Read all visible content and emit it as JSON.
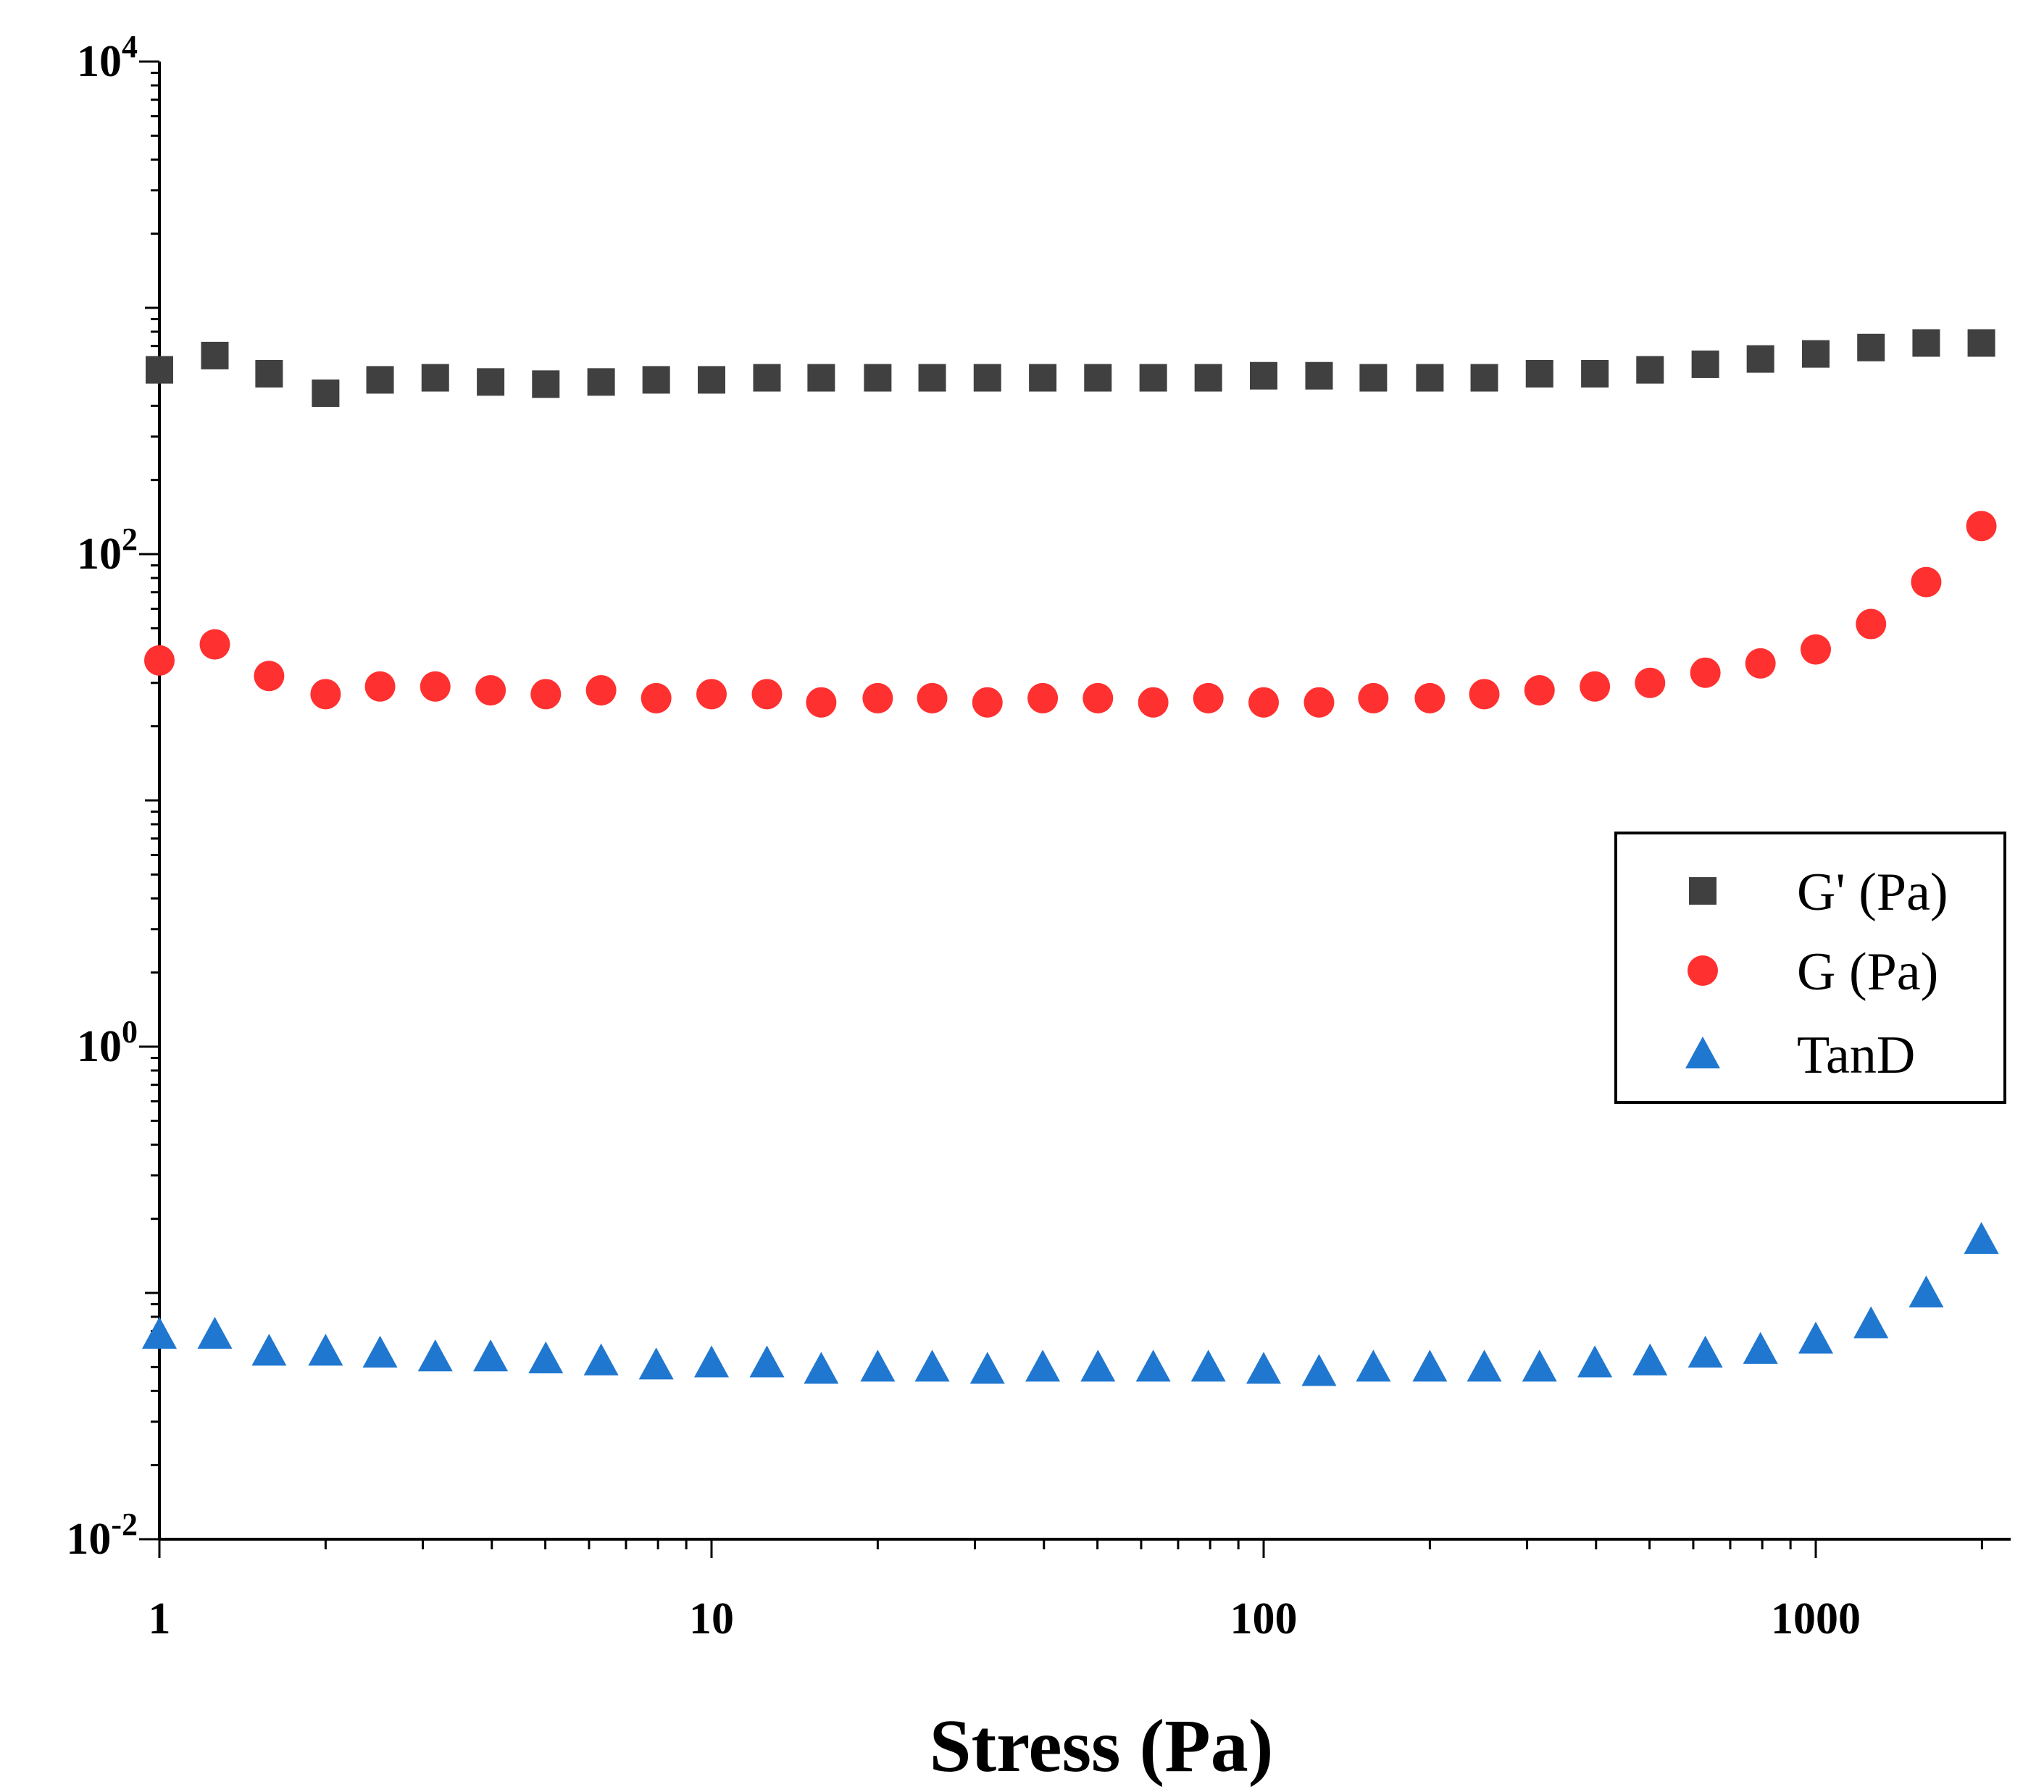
{
  "chart_data": {
    "type": "scatter",
    "title": "",
    "xlabel": "Stress (Pa)",
    "ylabel": "",
    "xscale": "log",
    "yscale": "log",
    "xlim": [
      1,
      2400
    ],
    "ylim": [
      0.01,
      10000
    ],
    "x_ticks": [
      {
        "value": 1,
        "label": "1"
      },
      {
        "value": 10,
        "label": "10"
      },
      {
        "value": 100,
        "label": "100"
      },
      {
        "value": 1000,
        "label": "1000"
      }
    ],
    "y_ticks": [
      {
        "value": 0.01,
        "base": "10",
        "exp": "-2"
      },
      {
        "value": 1,
        "base": "10",
        "exp": "0"
      },
      {
        "value": 100,
        "base": "10",
        "exp": "2"
      },
      {
        "value": 10000,
        "base": "10",
        "exp": "4"
      }
    ],
    "x": [
      1,
      1.26,
      1.58,
      2,
      2.51,
      3.16,
      3.98,
      5.01,
      6.31,
      7.94,
      10,
      12.6,
      15.8,
      20,
      25.1,
      31.6,
      39.8,
      50.1,
      63.1,
      79.4,
      100,
      126,
      158,
      200,
      251,
      316,
      398,
      501,
      631,
      794,
      1000,
      1259,
      1585,
      1995
    ],
    "series": [
      {
        "name": "G' (Pa)",
        "marker": "square",
        "color": "#404040",
        "values": [
          560,
          640,
          540,
          450,
          510,
          520,
          500,
          490,
          500,
          510,
          510,
          520,
          520,
          520,
          520,
          520,
          520,
          520,
          520,
          520,
          530,
          530,
          520,
          520,
          520,
          540,
          540,
          560,
          590,
          620,
          650,
          690,
          720,
          720
        ]
      },
      {
        "name": "G (Pa)",
        "marker": "circle",
        "color": "#ff3030",
        "values": [
          37,
          43,
          32,
          27,
          29,
          29,
          28,
          27,
          28,
          26,
          27,
          27,
          25,
          26,
          26,
          25,
          26,
          26,
          25,
          26,
          25,
          25,
          26,
          26,
          27,
          28,
          29,
          30,
          33,
          36,
          41,
          52,
          77,
          130
        ]
      },
      {
        "name": "TanD",
        "marker": "triangle",
        "color": "#1f77d0",
        "values": [
          0.068,
          0.068,
          0.058,
          0.058,
          0.057,
          0.055,
          0.055,
          0.054,
          0.053,
          0.051,
          0.052,
          0.052,
          0.049,
          0.05,
          0.05,
          0.049,
          0.05,
          0.05,
          0.05,
          0.05,
          0.049,
          0.048,
          0.05,
          0.05,
          0.05,
          0.05,
          0.052,
          0.053,
          0.057,
          0.059,
          0.065,
          0.075,
          0.1,
          0.165
        ]
      }
    ],
    "legend_position": "right",
    "grid": false
  }
}
